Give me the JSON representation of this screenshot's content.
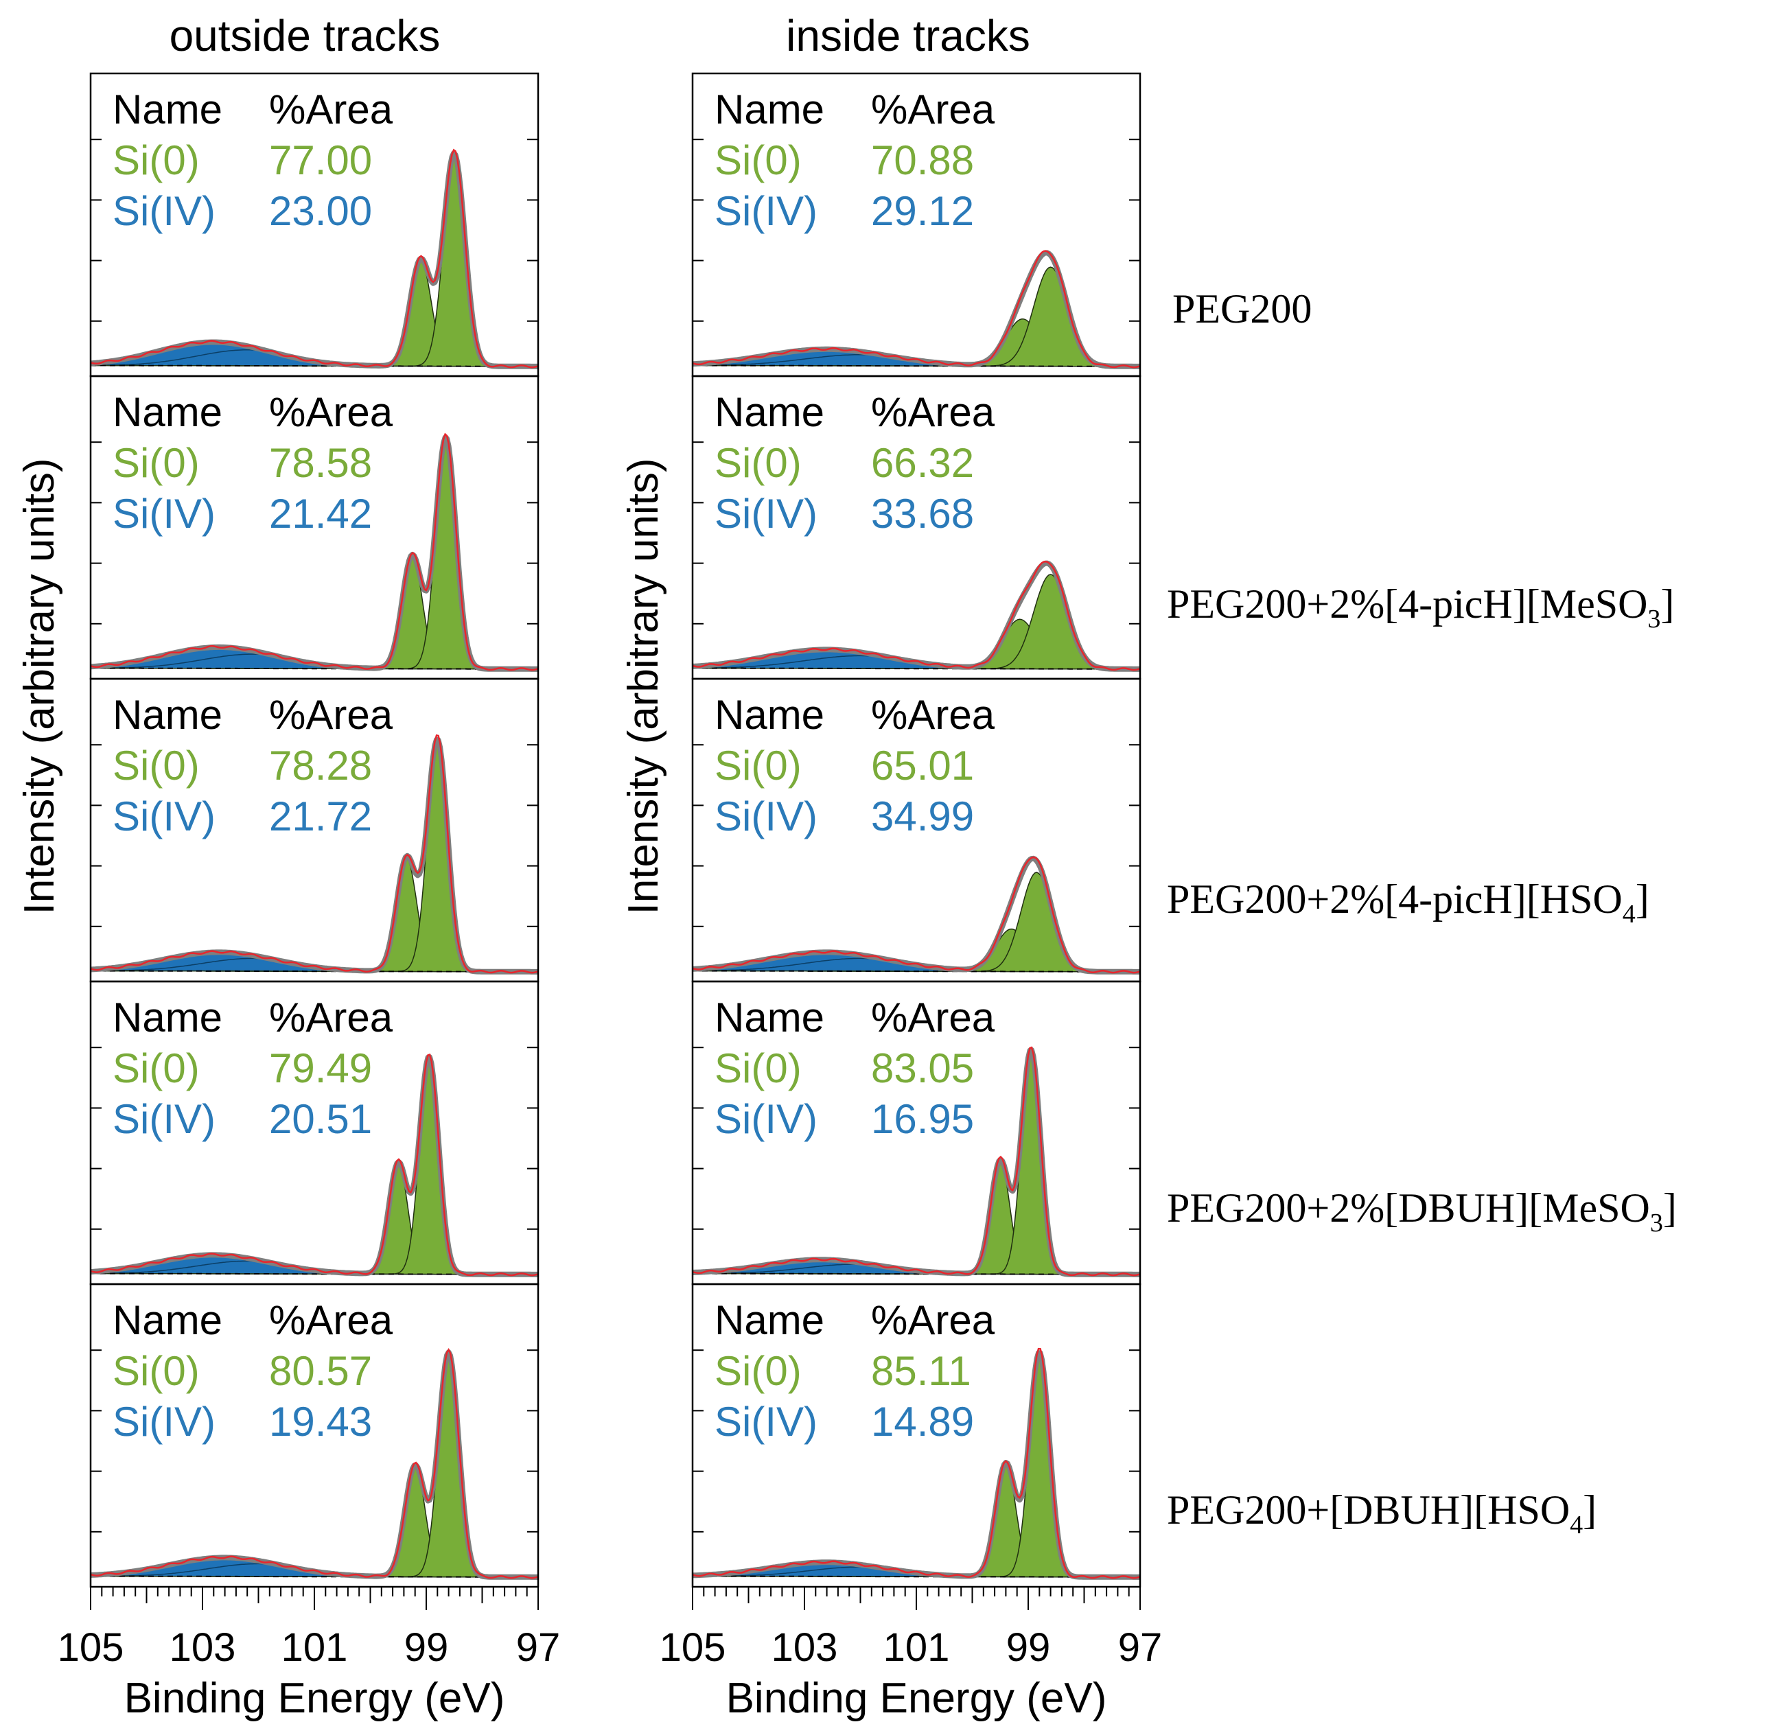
{
  "colors": {
    "si0": "#7aab3a",
    "si0_fill": "#78ae38",
    "si4": "#2a7ab9",
    "si4_fill": "#1f73b8",
    "envelope": "#7f7f7f",
    "data_line": "#e8262d",
    "axis": "#000000"
  },
  "chart_data": {
    "type": "area",
    "x_axis": {
      "label": "Binding Energy (eV)",
      "range": [
        105,
        97
      ],
      "reversed": true,
      "ticks": [
        105,
        103,
        101,
        99,
        97
      ],
      "tick_labels": [
        "105",
        "103",
        "101",
        "99",
        "97"
      ],
      "minor_tick_step": 0.2
    },
    "y_axis": {
      "label": "Intensity (arbitrary units)"
    },
    "table_headers": {
      "name": "Name",
      "area": "%Area"
    },
    "component_names": {
      "si0": "Si(0)",
      "si4": "Si(IV)"
    },
    "columns": [
      {
        "id": "outside",
        "title": "outside tracks"
      },
      {
        "id": "inside",
        "title": "inside tracks"
      }
    ],
    "rows": [
      {
        "label_main": "PEG200+",
        "label_tail": "",
        "label_sub": "",
        "label_end": "",
        "label_full": "PEG200",
        "panels": {
          "outside": {
            "si0": "77.00",
            "si4": "23.00",
            "si0_a_center": 98.5,
            "si0_a_height": 0.9,
            "si0_b_center": 99.1,
            "si0_b_height": 0.45,
            "si0_width": 0.19,
            "si4_center": 102.8,
            "si4_height": 0.1,
            "si4_width": 1.0
          },
          "inside": {
            "si0": "70.88",
            "si4": "29.12",
            "si0_a_center": 98.6,
            "si0_a_height": 0.42,
            "si0_b_center": 99.1,
            "si0_b_height": 0.2,
            "si0_width": 0.3,
            "si4_center": 102.6,
            "si4_height": 0.07,
            "si4_width": 1.1
          }
        }
      },
      {
        "label_main": "PEG200+2%[4-picH][MeSO",
        "label_tail": "",
        "label_sub": "3",
        "label_end": "]",
        "label_full": "",
        "panels": {
          "outside": {
            "si0": "78.58",
            "si4": "21.42",
            "si0_a_center": 98.65,
            "si0_a_height": 0.98,
            "si0_b_center": 99.25,
            "si0_b_height": 0.48,
            "si0_width": 0.18,
            "si4_center": 102.7,
            "si4_height": 0.09,
            "si4_width": 1.0
          },
          "inside": {
            "si0": "66.32",
            "si4": "33.68",
            "si0_a_center": 98.6,
            "si0_a_height": 0.4,
            "si0_b_center": 99.15,
            "si0_b_height": 0.21,
            "si0_width": 0.3,
            "si4_center": 102.6,
            "si4_height": 0.08,
            "si4_width": 1.1
          }
        }
      },
      {
        "label_main": "PEG200+2%[4-picH][HSO",
        "label_tail": "",
        "label_sub": "4",
        "label_end": "]",
        "label_full": "",
        "panels": {
          "outside": {
            "si0": "78.28",
            "si4": "21.72",
            "si0_a_center": 98.8,
            "si0_a_height": 0.98,
            "si0_b_center": 99.35,
            "si0_b_height": 0.48,
            "si0_width": 0.18,
            "si4_center": 102.7,
            "si4_height": 0.08,
            "si4_width": 1.0
          },
          "inside": {
            "si0": "65.01",
            "si4": "34.99",
            "si0_a_center": 98.85,
            "si0_a_height": 0.42,
            "si0_b_center": 99.3,
            "si0_b_height": 0.18,
            "si0_width": 0.28,
            "si4_center": 102.6,
            "si4_height": 0.08,
            "si4_width": 1.1
          }
        }
      },
      {
        "label_main": "PEG200+2%[DBUH][MeSO",
        "label_tail": "",
        "label_sub": "3",
        "label_end": "]",
        "label_full": "",
        "panels": {
          "outside": {
            "si0": "79.49",
            "si4": "20.51",
            "si0_a_center": 98.95,
            "si0_a_height": 0.92,
            "si0_b_center": 99.5,
            "si0_b_height": 0.47,
            "si0_width": 0.17,
            "si4_center": 102.8,
            "si4_height": 0.08,
            "si4_width": 1.0
          },
          "inside": {
            "si0": "83.05",
            "si4": "16.95",
            "si0_a_center": 98.95,
            "si0_a_height": 0.95,
            "si0_b_center": 99.5,
            "si0_b_height": 0.48,
            "si0_width": 0.17,
            "si4_center": 102.7,
            "si4_height": 0.06,
            "si4_width": 1.0
          }
        }
      },
      {
        "label_main": "PEG200+[DBUH][HSO",
        "label_tail": "",
        "label_sub": "4",
        "label_end": "]",
        "label_full": "",
        "panels": {
          "outside": {
            "si0": "80.57",
            "si4": "19.43",
            "si0_a_center": 98.6,
            "si0_a_height": 0.95,
            "si0_b_center": 99.2,
            "si0_b_height": 0.47,
            "si0_width": 0.18,
            "si4_center": 102.6,
            "si4_height": 0.08,
            "si4_width": 1.0
          },
          "inside": {
            "si0": "85.11",
            "si4": "14.89",
            "si0_a_center": 98.8,
            "si0_a_height": 0.95,
            "si0_b_center": 99.4,
            "si0_b_height": 0.48,
            "si0_width": 0.18,
            "si4_center": 102.6,
            "si4_height": 0.06,
            "si4_width": 1.0
          }
        }
      }
    ]
  }
}
